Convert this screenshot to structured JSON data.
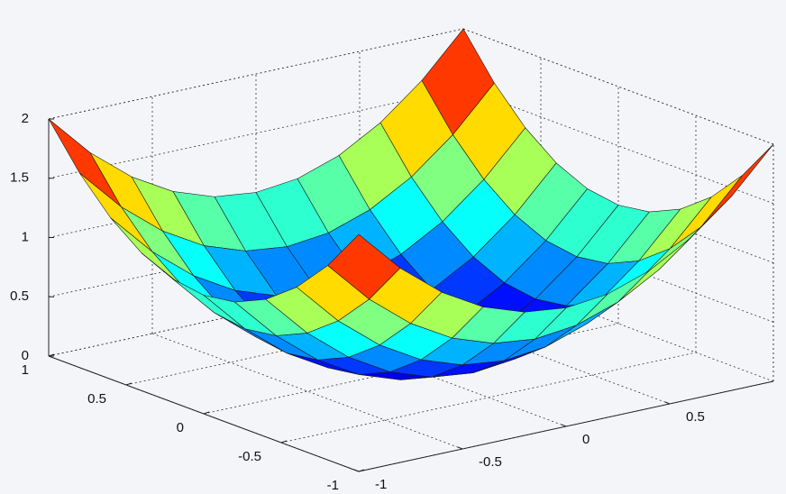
{
  "chart_data": {
    "type": "surface",
    "colormap": "jet",
    "grid": true,
    "x": [
      -1,
      -0.8,
      -0.6,
      -0.4,
      -0.2,
      0,
      0.2,
      0.4,
      0.6,
      0.8,
      1
    ],
    "y": [
      -1,
      -0.8,
      -0.6,
      -0.4,
      -0.2,
      0,
      0.2,
      0.4,
      0.6,
      0.8,
      1
    ],
    "z": [
      [
        2,
        1.64,
        1.36,
        1.16,
        1.04,
        1,
        1.04,
        1.16,
        1.36,
        1.64,
        2
      ],
      [
        1.64,
        1.28,
        1,
        0.8,
        0.68,
        0.64,
        0.68,
        0.8,
        1,
        1.28,
        1.64
      ],
      [
        1.36,
        1,
        0.72,
        0.52,
        0.4,
        0.36,
        0.4,
        0.52,
        0.72,
        1,
        1.36
      ],
      [
        1.16,
        0.8,
        0.52,
        0.32,
        0.2,
        0.16,
        0.2,
        0.32,
        0.52,
        0.8,
        1.16
      ],
      [
        1.04,
        0.68,
        0.4,
        0.2,
        0.08,
        0.04,
        0.08,
        0.2,
        0.4,
        0.68,
        1.04
      ],
      [
        1,
        0.64,
        0.36,
        0.16,
        0.04,
        0,
        0.04,
        0.16,
        0.36,
        0.64,
        1
      ],
      [
        1.04,
        0.68,
        0.4,
        0.2,
        0.08,
        0.04,
        0.08,
        0.2,
        0.4,
        0.68,
        1.04
      ],
      [
        1.16,
        0.8,
        0.52,
        0.32,
        0.2,
        0.16,
        0.2,
        0.32,
        0.52,
        0.8,
        1.16
      ],
      [
        1.36,
        1,
        0.72,
        0.52,
        0.4,
        0.36,
        0.4,
        0.52,
        0.72,
        1,
        1.36
      ],
      [
        1.64,
        1.28,
        1,
        0.8,
        0.68,
        0.64,
        0.68,
        0.8,
        1,
        1.28,
        1.64
      ],
      [
        2,
        1.64,
        1.36,
        1.16,
        1.04,
        1,
        1.04,
        1.16,
        1.36,
        1.64,
        2
      ]
    ],
    "xlim": [
      -1,
      1
    ],
    "ylim": [
      -1,
      1
    ],
    "zlim": [
      0,
      2
    ],
    "xticks": [
      -1,
      -0.5,
      0,
      0.5
    ],
    "yticks": [
      -1,
      -0.5,
      0,
      0.5,
      1
    ],
    "zticks": [
      0,
      0.5,
      1,
      1.5,
      2
    ]
  }
}
